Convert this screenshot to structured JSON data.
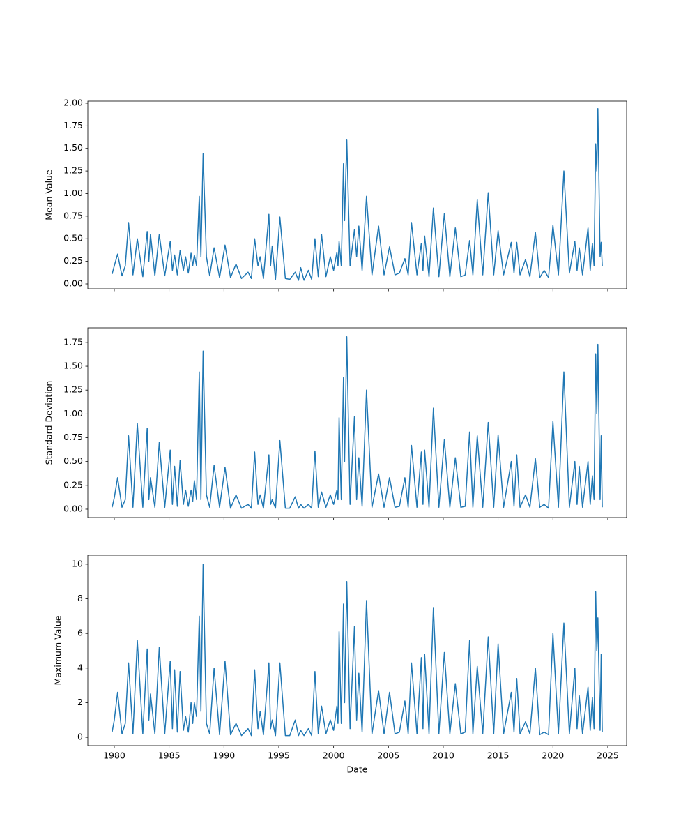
{
  "chart_data": [
    {
      "type": "line",
      "ylabel": "Mean Value",
      "x": [
        1979.8,
        1980.0,
        1980.3,
        1980.7,
        1981.0,
        1981.3,
        1981.7,
        1982.1,
        1982.6,
        1983.0,
        1983.15,
        1983.3,
        1983.7,
        1984.1,
        1984.6,
        1985.1,
        1985.3,
        1985.5,
        1985.75,
        1986.0,
        1986.3,
        1986.5,
        1986.75,
        1987.0,
        1987.15,
        1987.3,
        1987.5,
        1987.75,
        1987.9,
        1988.1,
        1988.4,
        1988.7,
        1989.1,
        1989.6,
        1990.1,
        1990.6,
        1991.1,
        1991.6,
        1992.2,
        1992.5,
        1992.8,
        1993.1,
        1993.3,
        1993.6,
        1994.1,
        1994.25,
        1994.4,
        1994.7,
        1995.1,
        1995.6,
        1996.0,
        1996.5,
        1996.8,
        1997.0,
        1997.3,
        1997.7,
        1998.0,
        1998.3,
        1998.6,
        1998.9,
        1999.3,
        1999.7,
        2000.0,
        2000.3,
        2000.4,
        2000.5,
        2000.7,
        2000.9,
        2001.0,
        2001.2,
        2001.5,
        2001.9,
        2002.1,
        2002.3,
        2002.6,
        2003.0,
        2003.5,
        2004.1,
        2004.6,
        2005.1,
        2005.6,
        2006.0,
        2006.5,
        2006.8,
        2007.1,
        2007.6,
        2008.0,
        2008.15,
        2008.3,
        2008.7,
        2009.1,
        2009.6,
        2010.1,
        2010.6,
        2011.1,
        2011.6,
        2012.0,
        2012.4,
        2012.7,
        2013.1,
        2013.6,
        2014.1,
        2014.6,
        2015.0,
        2015.5,
        2016.2,
        2016.45,
        2016.7,
        2017.0,
        2017.5,
        2017.9,
        2018.4,
        2018.8,
        2019.2,
        2019.6,
        2020.0,
        2020.5,
        2021.0,
        2021.5,
        2022.0,
        2022.2,
        2022.4,
        2022.7,
        2023.2,
        2023.4,
        2023.6,
        2023.75,
        2023.9,
        2024.0,
        2024.1,
        2024.3,
        2024.4,
        2024.5
      ],
      "series": [
        {
          "name": "mean",
          "color": "#1f77b4",
          "values": [
            0.11,
            0.2,
            0.33,
            0.09,
            0.2,
            0.68,
            0.1,
            0.5,
            0.08,
            0.58,
            0.25,
            0.55,
            0.09,
            0.55,
            0.09,
            0.47,
            0.15,
            0.32,
            0.1,
            0.37,
            0.15,
            0.3,
            0.12,
            0.34,
            0.2,
            0.32,
            0.2,
            0.97,
            0.3,
            1.44,
            0.3,
            0.09,
            0.4,
            0.07,
            0.43,
            0.07,
            0.22,
            0.06,
            0.13,
            0.06,
            0.5,
            0.2,
            0.3,
            0.06,
            0.77,
            0.2,
            0.42,
            0.05,
            0.74,
            0.06,
            0.05,
            0.13,
            0.04,
            0.18,
            0.04,
            0.15,
            0.05,
            0.5,
            0.08,
            0.55,
            0.08,
            0.3,
            0.15,
            0.35,
            0.2,
            0.47,
            0.2,
            1.33,
            0.7,
            1.6,
            0.2,
            0.6,
            0.3,
            0.64,
            0.15,
            0.97,
            0.1,
            0.64,
            0.1,
            0.41,
            0.1,
            0.12,
            0.28,
            0.1,
            0.68,
            0.1,
            0.45,
            0.15,
            0.53,
            0.08,
            0.84,
            0.08,
            0.78,
            0.08,
            0.62,
            0.08,
            0.1,
            0.48,
            0.1,
            0.93,
            0.1,
            1.01,
            0.1,
            0.59,
            0.1,
            0.46,
            0.12,
            0.46,
            0.1,
            0.27,
            0.08,
            0.57,
            0.07,
            0.15,
            0.07,
            0.65,
            0.1,
            1.25,
            0.12,
            0.47,
            0.15,
            0.4,
            0.1,
            0.62,
            0.15,
            0.45,
            0.2,
            1.55,
            1.25,
            1.94,
            0.3,
            0.46,
            0.2
          ]
        }
      ],
      "xlim": [
        1977.585,
        2026.72
      ],
      "xticks": [
        1980,
        1985,
        1990,
        1995,
        2000,
        2005,
        2010,
        2015,
        2020,
        2025
      ],
      "ylim": [
        -0.054,
        2.023
      ],
      "yticks": [
        {
          "value": 0,
          "label": "0.00"
        },
        {
          "value": 0.25,
          "label": "0.25"
        },
        {
          "value": 0.5,
          "label": "0.50"
        },
        {
          "value": 0.75,
          "label": "0.75"
        },
        {
          "value": 1,
          "label": "1.00"
        },
        {
          "value": 1.25,
          "label": "1.25"
        },
        {
          "value": 1.5,
          "label": "1.50"
        },
        {
          "value": 1.75,
          "label": "1.75"
        },
        {
          "value": 2,
          "label": "2.00"
        }
      ]
    },
    {
      "type": "line",
      "ylabel": "Standard Deviation",
      "x": [
        1979.8,
        1980.0,
        1980.3,
        1980.7,
        1981.0,
        1981.3,
        1981.7,
        1982.1,
        1982.6,
        1983.0,
        1983.15,
        1983.3,
        1983.7,
        1984.1,
        1984.6,
        1985.1,
        1985.3,
        1985.5,
        1985.75,
        1986.0,
        1986.3,
        1986.5,
        1986.75,
        1987.0,
        1987.15,
        1987.3,
        1987.5,
        1987.75,
        1987.9,
        1988.1,
        1988.4,
        1988.7,
        1989.1,
        1989.6,
        1990.1,
        1990.6,
        1991.1,
        1991.6,
        1992.2,
        1992.5,
        1992.8,
        1993.1,
        1993.3,
        1993.6,
        1994.1,
        1994.25,
        1994.4,
        1994.7,
        1995.1,
        1995.6,
        1996.0,
        1996.5,
        1996.8,
        1997.0,
        1997.3,
        1997.7,
        1998.0,
        1998.3,
        1998.6,
        1998.9,
        1999.3,
        1999.7,
        2000.0,
        2000.3,
        2000.4,
        2000.5,
        2000.7,
        2000.9,
        2001.0,
        2001.2,
        2001.5,
        2001.9,
        2002.1,
        2002.3,
        2002.6,
        2003.0,
        2003.5,
        2004.1,
        2004.6,
        2005.1,
        2005.6,
        2006.0,
        2006.5,
        2006.8,
        2007.1,
        2007.6,
        2008.0,
        2008.15,
        2008.3,
        2008.7,
        2009.1,
        2009.6,
        2010.1,
        2010.6,
        2011.1,
        2011.6,
        2012.0,
        2012.4,
        2012.7,
        2013.1,
        2013.6,
        2014.1,
        2014.6,
        2015.0,
        2015.5,
        2016.2,
        2016.45,
        2016.7,
        2017.0,
        2017.5,
        2017.9,
        2018.4,
        2018.8,
        2019.2,
        2019.6,
        2020.0,
        2020.5,
        2021.0,
        2021.5,
        2022.0,
        2022.2,
        2022.4,
        2022.7,
        2023.2,
        2023.4,
        2023.6,
        2023.75,
        2023.9,
        2024.0,
        2024.1,
        2024.3,
        2024.4,
        2024.5
      ],
      "series": [
        {
          "name": "std",
          "color": "#1f77b4",
          "values": [
            0.02,
            0.12,
            0.33,
            0.02,
            0.1,
            0.77,
            0.02,
            0.9,
            0.02,
            0.85,
            0.1,
            0.33,
            0.02,
            0.7,
            0.02,
            0.62,
            0.05,
            0.45,
            0.03,
            0.51,
            0.05,
            0.2,
            0.03,
            0.2,
            0.08,
            0.3,
            0.1,
            1.44,
            0.1,
            1.66,
            0.15,
            0.02,
            0.46,
            0.02,
            0.44,
            0.01,
            0.15,
            0.01,
            0.05,
            0.01,
            0.6,
            0.05,
            0.15,
            0.01,
            0.57,
            0.05,
            0.1,
            0.01,
            0.72,
            0.01,
            0.01,
            0.13,
            0.01,
            0.05,
            0.01,
            0.05,
            0.01,
            0.61,
            0.02,
            0.18,
            0.02,
            0.15,
            0.05,
            0.2,
            0.1,
            0.96,
            0.1,
            1.38,
            0.5,
            1.81,
            0.05,
            0.97,
            0.1,
            0.54,
            0.03,
            1.25,
            0.02,
            0.37,
            0.02,
            0.33,
            0.02,
            0.03,
            0.33,
            0.02,
            0.67,
            0.02,
            0.6,
            0.05,
            0.62,
            0.02,
            1.06,
            0.02,
            0.73,
            0.02,
            0.54,
            0.02,
            0.03,
            0.81,
            0.02,
            0.77,
            0.02,
            0.91,
            0.02,
            0.78,
            0.02,
            0.5,
            0.03,
            0.57,
            0.02,
            0.15,
            0.02,
            0.53,
            0.02,
            0.05,
            0.01,
            0.92,
            0.02,
            1.44,
            0.02,
            0.5,
            0.05,
            0.45,
            0.02,
            0.5,
            0.05,
            0.35,
            0.1,
            1.63,
            1.0,
            1.73,
            0.1,
            0.77,
            0.02
          ]
        }
      ],
      "xlim": [
        1977.585,
        2026.72
      ],
      "xticks": [
        1980,
        1985,
        1990,
        1995,
        2000,
        2005,
        2010,
        2015,
        2020,
        2025
      ],
      "ylim": [
        -0.088,
        1.903
      ],
      "yticks": [
        {
          "value": 0,
          "label": "0.00"
        },
        {
          "value": 0.25,
          "label": "0.25"
        },
        {
          "value": 0.5,
          "label": "0.50"
        },
        {
          "value": 0.75,
          "label": "0.75"
        },
        {
          "value": 1,
          "label": "1.00"
        },
        {
          "value": 1.25,
          "label": "1.25"
        },
        {
          "value": 1.5,
          "label": "1.50"
        },
        {
          "value": 1.75,
          "label": "1.75"
        }
      ]
    },
    {
      "type": "line",
      "ylabel": "Maximum Value",
      "xlabel": "Date",
      "x": [
        1979.8,
        1980.0,
        1980.3,
        1980.7,
        1981.0,
        1981.3,
        1981.7,
        1982.1,
        1982.6,
        1983.0,
        1983.15,
        1983.3,
        1983.7,
        1984.1,
        1984.6,
        1985.1,
        1985.3,
        1985.5,
        1985.75,
        1986.0,
        1986.3,
        1986.5,
        1986.75,
        1987.0,
        1987.15,
        1987.3,
        1987.5,
        1987.75,
        1987.9,
        1988.1,
        1988.4,
        1988.7,
        1989.1,
        1989.6,
        1990.1,
        1990.6,
        1991.1,
        1991.6,
        1992.2,
        1992.5,
        1992.8,
        1993.1,
        1993.3,
        1993.6,
        1994.1,
        1994.25,
        1994.4,
        1994.7,
        1995.1,
        1995.6,
        1996.0,
        1996.5,
        1996.8,
        1997.0,
        1997.3,
        1997.7,
        1998.0,
        1998.3,
        1998.6,
        1998.9,
        1999.3,
        1999.7,
        2000.0,
        2000.3,
        2000.4,
        2000.5,
        2000.7,
        2000.9,
        2001.0,
        2001.2,
        2001.5,
        2001.9,
        2002.1,
        2002.3,
        2002.6,
        2003.0,
        2003.5,
        2004.1,
        2004.6,
        2005.1,
        2005.6,
        2006.0,
        2006.5,
        2006.8,
        2007.1,
        2007.6,
        2008.0,
        2008.15,
        2008.3,
        2008.7,
        2009.1,
        2009.6,
        2010.1,
        2010.6,
        2011.1,
        2011.6,
        2012.0,
        2012.4,
        2012.7,
        2013.1,
        2013.6,
        2014.1,
        2014.6,
        2015.0,
        2015.5,
        2016.2,
        2016.45,
        2016.7,
        2017.0,
        2017.5,
        2017.9,
        2018.4,
        2018.8,
        2019.2,
        2019.6,
        2020.0,
        2020.5,
        2021.0,
        2021.5,
        2022.0,
        2022.2,
        2022.4,
        2022.7,
        2023.2,
        2023.4,
        2023.6,
        2023.75,
        2023.9,
        2024.0,
        2024.1,
        2024.3,
        2024.4,
        2024.5
      ],
      "series": [
        {
          "name": "max",
          "color": "#1f77b4",
          "values": [
            0.3,
            1.0,
            2.6,
            0.2,
            0.8,
            4.3,
            0.2,
            5.6,
            0.2,
            5.1,
            1.0,
            2.5,
            0.2,
            5.2,
            0.2,
            4.4,
            0.5,
            3.9,
            0.3,
            3.8,
            0.4,
            1.2,
            0.3,
            2.0,
            0.8,
            2.0,
            1.2,
            7.0,
            1.5,
            10.0,
            0.8,
            0.2,
            4.0,
            0.15,
            4.4,
            0.15,
            0.8,
            0.1,
            0.5,
            0.1,
            3.9,
            0.5,
            1.5,
            0.15,
            4.3,
            0.5,
            1.0,
            0.1,
            4.3,
            0.1,
            0.1,
            1.0,
            0.1,
            0.4,
            0.1,
            0.5,
            0.1,
            3.8,
            0.2,
            1.8,
            0.2,
            1.0,
            0.4,
            1.8,
            0.8,
            6.1,
            0.8,
            7.7,
            2.0,
            9.0,
            0.5,
            6.4,
            1.0,
            3.7,
            0.3,
            7.9,
            0.2,
            2.7,
            0.2,
            2.6,
            0.2,
            0.3,
            2.1,
            0.2,
            4.3,
            0.2,
            4.6,
            0.5,
            4.8,
            0.2,
            7.5,
            0.2,
            4.9,
            0.2,
            3.1,
            0.2,
            0.3,
            5.6,
            0.2,
            4.1,
            0.2,
            5.8,
            0.2,
            5.4,
            0.2,
            2.6,
            0.3,
            3.4,
            0.2,
            0.9,
            0.2,
            4.0,
            0.15,
            0.3,
            0.15,
            6.0,
            0.2,
            6.6,
            0.2,
            4.0,
            0.5,
            2.4,
            0.2,
            2.9,
            0.4,
            2.3,
            0.5,
            8.4,
            5.0,
            6.9,
            0.4,
            4.8,
            0.3
          ]
        }
      ],
      "xlim": [
        1977.585,
        2026.72
      ],
      "xticks": [
        1980,
        1985,
        1990,
        1995,
        2000,
        2005,
        2010,
        2015,
        2020,
        2025
      ],
      "ylim": [
        -0.48,
        10.52
      ],
      "yticks": [
        0,
        2,
        4,
        6,
        8,
        10
      ]
    }
  ]
}
